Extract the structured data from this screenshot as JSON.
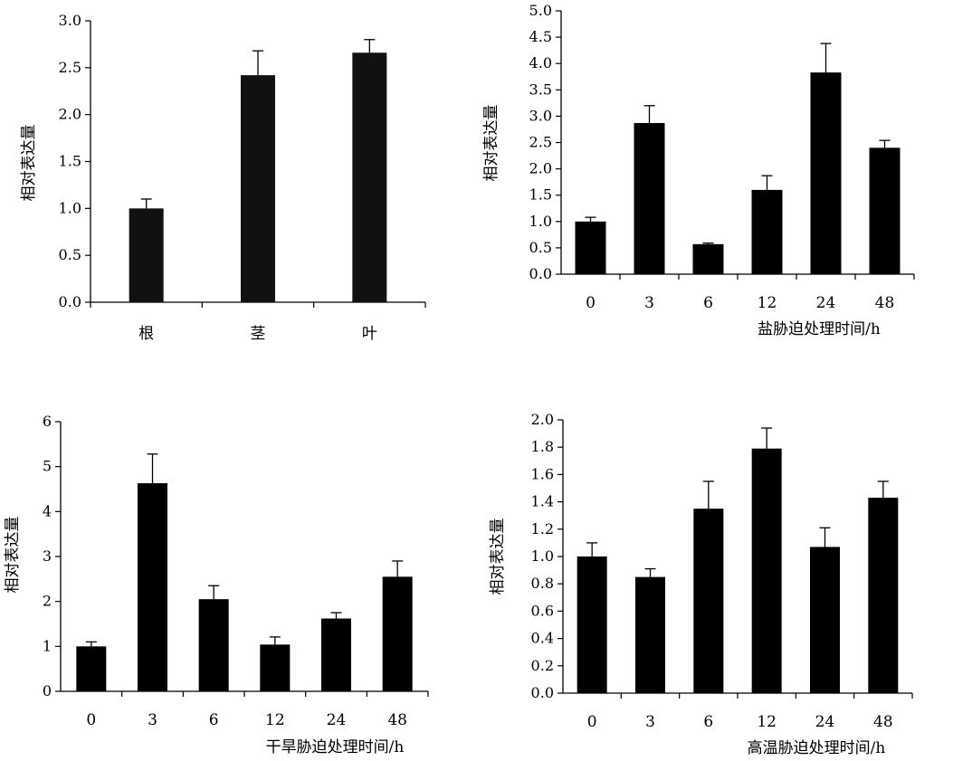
{
  "chart_data": [
    {
      "type": "bar",
      "categories": [
        "根",
        "茎",
        "叶"
      ],
      "values": [
        1.0,
        2.42,
        2.66
      ],
      "errors": [
        0.1,
        0.26,
        0.14
      ],
      "xlabel": "",
      "ylabel": "相对表达量",
      "ylim": [
        0,
        3.0
      ],
      "yticks": [
        "0.0",
        "0.5",
        "1.0",
        "1.5",
        "2.0",
        "2.5",
        "3.0"
      ],
      "bar_color": "#111111"
    },
    {
      "type": "bar",
      "categories": [
        "0",
        "3",
        "6",
        "12",
        "24",
        "48"
      ],
      "values": [
        1.0,
        2.87,
        0.57,
        1.6,
        3.83,
        2.4
      ],
      "errors": [
        0.08,
        0.33,
        0.02,
        0.27,
        0.55,
        0.14
      ],
      "xlabel": "盐胁迫处理时间/h",
      "ylabel": "相对表达量",
      "ylim": [
        0,
        5.0
      ],
      "yticks": [
        "0.0",
        "0.5",
        "1.0",
        "1.5",
        "2.0",
        "2.5",
        "3.0",
        "3.5",
        "4.0",
        "4.5",
        "5.0"
      ],
      "bar_color": "#000000"
    },
    {
      "type": "bar",
      "categories": [
        "0",
        "3",
        "6",
        "12",
        "24",
        "48"
      ],
      "values": [
        1.0,
        4.63,
        2.05,
        1.04,
        1.62,
        2.55
      ],
      "errors": [
        0.1,
        0.65,
        0.3,
        0.17,
        0.13,
        0.35
      ],
      "xlabel": "干旱胁迫处理时间/h",
      "ylabel": "相对表达量",
      "ylim": [
        0,
        6
      ],
      "yticks": [
        "0",
        "1",
        "2",
        "3",
        "4",
        "5",
        "6"
      ],
      "bar_color": "#000000"
    },
    {
      "type": "bar",
      "categories": [
        "0",
        "3",
        "6",
        "12",
        "24",
        "48"
      ],
      "values": [
        1.0,
        0.85,
        1.35,
        1.79,
        1.07,
        1.43
      ],
      "errors": [
        0.1,
        0.06,
        0.2,
        0.15,
        0.14,
        0.12
      ],
      "xlabel": "高温胁迫处理时间/h",
      "ylabel": "相对表达量",
      "ylim": [
        0,
        2.0
      ],
      "yticks": [
        "0.0",
        "0.2",
        "0.4",
        "0.6",
        "0.8",
        "1.0",
        "1.2",
        "1.4",
        "1.6",
        "1.8",
        "2.0"
      ],
      "bar_color": "#000000"
    }
  ]
}
